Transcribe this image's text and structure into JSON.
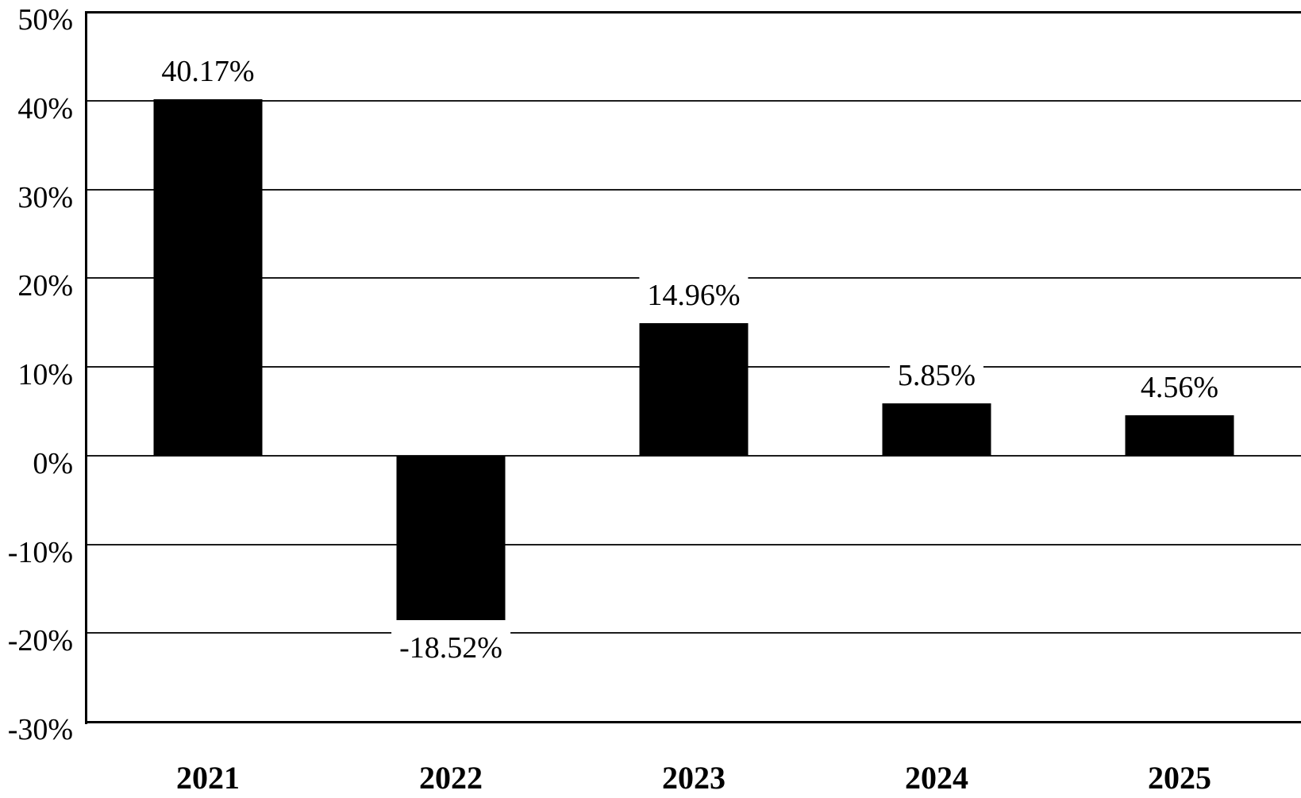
{
  "figure": {
    "background_color": "#ffffff",
    "text_color": "#000000"
  },
  "chart_data": {
    "type": "bar",
    "categories": [
      "2021",
      "2022",
      "2023",
      "2024",
      "2025"
    ],
    "values": [
      40.17,
      -18.52,
      14.96,
      5.85,
      4.56
    ],
    "value_labels": [
      "40.17%",
      "-18.52%",
      "14.96%",
      "5.85%",
      "4.56%"
    ],
    "title": "",
    "xlabel": "",
    "ylabel": "",
    "ylim": [
      -30,
      50
    ],
    "ytick_interval": 10,
    "yticks": [
      50,
      40,
      30,
      20,
      10,
      0,
      -10,
      -20,
      -30
    ],
    "ytick_labels": [
      "50%",
      "40%",
      "30%",
      "20%",
      "10%",
      "0%",
      "-10%",
      "-20%",
      "-30%"
    ],
    "grid": true,
    "legend": false,
    "bar_color": "#000000",
    "gridline_color": "#1c1c1c",
    "axis_color": "#000000"
  }
}
